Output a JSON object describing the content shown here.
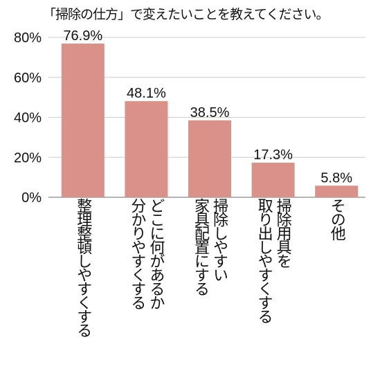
{
  "title": "「掃除の仕方」で変えたいことを教えてください。",
  "colors": {
    "bar": "#da918a",
    "grid": "#cccccc",
    "axis": "#888888"
  },
  "chart_data": {
    "type": "bar",
    "title": "「掃除の仕方」で変えたいことを教えてください。",
    "xlabel": "",
    "ylabel": "",
    "ylim": [
      0,
      80
    ],
    "yticks": [
      0,
      20,
      40,
      60,
      80
    ],
    "yticklabels": [
      "0%",
      "20%",
      "40%",
      "60%",
      "80%"
    ],
    "grid": true,
    "categories": [
      "整理整頓しやすくする",
      "どこに何があるか分かりやすくする",
      "掃除しやすい家具配置にする",
      "掃除用具を取り出しやすくする",
      "その他"
    ],
    "category_lines": [
      [
        "整理整頓しやすくする"
      ],
      [
        "どこに何があるか",
        "分かりやすくする"
      ],
      [
        "掃除しやすい",
        "家具配置にする"
      ],
      [
        "掃除用具を",
        "取り出しやすくする"
      ],
      [
        "その他"
      ]
    ],
    "values": [
      76.9,
      48.1,
      38.5,
      17.3,
      5.8
    ],
    "value_labels": [
      "76.9%",
      "48.1%",
      "38.5%",
      "17.3%",
      "5.8%"
    ]
  }
}
